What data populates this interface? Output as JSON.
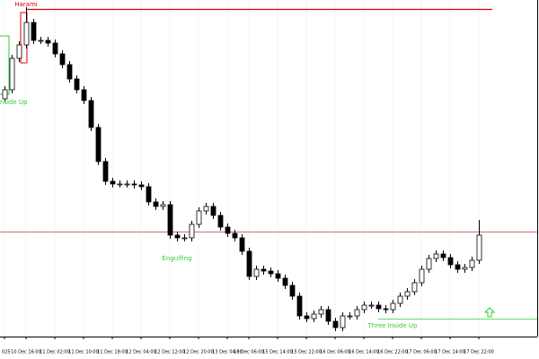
{
  "chart_data": {
    "type": "candlestick",
    "categories": [
      "025",
      null,
      null,
      "10 Dec 16:00",
      null,
      null,
      null,
      "11 Dec 02:00",
      null,
      null,
      null,
      "11 Dec 10:00",
      null,
      null,
      null,
      "11 Dec 18:00",
      null,
      null,
      null,
      "12 Dec 04:00",
      null,
      null,
      null,
      "12 Dec 12:00",
      null,
      null,
      null,
      "12 Dec 20:00",
      null,
      null,
      null,
      "13 Dec 04:00",
      null,
      null,
      "15 Dec 06:00",
      null,
      null,
      null,
      "15 Dec 14:00",
      null,
      null,
      null,
      "15 Dec 22:00",
      null,
      null,
      null,
      "16 Dec 06:00",
      null,
      null,
      null,
      "16 Dec 14:00",
      null,
      null,
      null,
      "16 Dec 22:00",
      null,
      null,
      null,
      "17 Dec 06:00",
      null,
      null,
      null,
      "17 Dec 14:00",
      null,
      null,
      null,
      "17 Dec 22:00"
    ],
    "open": [
      290,
      300,
      335,
      350,
      375,
      355,
      355,
      352,
      340,
      328,
      312,
      300,
      288,
      258,
      220,
      198,
      195,
      195,
      195,
      194,
      192,
      175,
      170,
      172,
      138,
      135,
      135,
      150,
      165,
      170,
      160,
      147,
      140,
      135,
      120,
      92,
      100,
      98,
      95,
      90,
      82,
      70,
      48,
      45,
      50,
      55,
      42,
      35,
      48,
      48,
      55,
      60,
      60,
      56,
      55,
      62,
      70,
      75,
      85,
      100,
      112,
      117,
      113,
      105,
      100,
      102,
      110
    ],
    "high": [
      304,
      339,
      354,
      392,
      379,
      359,
      359,
      356,
      344,
      332,
      316,
      304,
      292,
      262,
      224,
      202,
      199,
      199,
      199,
      198,
      196,
      179,
      176,
      176,
      142,
      139,
      154,
      169,
      174,
      174,
      164,
      151,
      144,
      139,
      124,
      104,
      104,
      102,
      99,
      94,
      86,
      74,
      52,
      54,
      59,
      59,
      46,
      52,
      52,
      59,
      64,
      64,
      64,
      60,
      66,
      74,
      79,
      89,
      104,
      116,
      121,
      121,
      117,
      109,
      106,
      114,
      155
    ],
    "low": [
      286,
      296,
      331,
      346,
      351,
      351,
      348,
      336,
      324,
      308,
      296,
      284,
      254,
      216,
      194,
      191,
      191,
      191,
      190,
      188,
      171,
      166,
      166,
      134,
      131,
      131,
      131,
      146,
      161,
      156,
      143,
      136,
      131,
      116,
      88,
      88,
      94,
      91,
      86,
      78,
      66,
      44,
      41,
      41,
      46,
      38,
      31,
      31,
      44,
      44,
      51,
      56,
      52,
      51,
      51,
      58,
      66,
      71,
      81,
      96,
      108,
      109,
      101,
      96,
      96,
      98,
      106
    ],
    "close": [
      300,
      335,
      350,
      375,
      355,
      355,
      352,
      340,
      328,
      312,
      300,
      288,
      258,
      220,
      198,
      195,
      195,
      195,
      194,
      192,
      175,
      170,
      172,
      138,
      135,
      135,
      150,
      165,
      170,
      160,
      147,
      140,
      135,
      120,
      92,
      100,
      98,
      95,
      90,
      82,
      70,
      48,
      45,
      50,
      55,
      42,
      35,
      48,
      48,
      55,
      60,
      60,
      56,
      55,
      62,
      70,
      75,
      85,
      100,
      112,
      117,
      113,
      105,
      100,
      102,
      110,
      138
    ],
    "ylim": [
      25,
      400
    ],
    "grid": true,
    "levels": [
      {
        "value": 390,
        "color": "#e00000",
        "from": 3
      },
      {
        "value": 142,
        "color": "#c83c3c"
      },
      {
        "value": 45,
        "color": "#33cc33",
        "from": 52
      }
    ],
    "annotations": [
      {
        "text": "Harami",
        "index": 3,
        "value": 392,
        "color": "#e00000"
      },
      {
        "text": "Three Inside Up",
        "index": 0,
        "value": 290,
        "color": "#33cc33"
      },
      {
        "text": "Engulfing",
        "index": 24,
        "value": 116,
        "color": "#33cc33"
      },
      {
        "text": "Three Inside Up",
        "index": 54,
        "value": 41,
        "color": "#33cc33"
      }
    ]
  }
}
